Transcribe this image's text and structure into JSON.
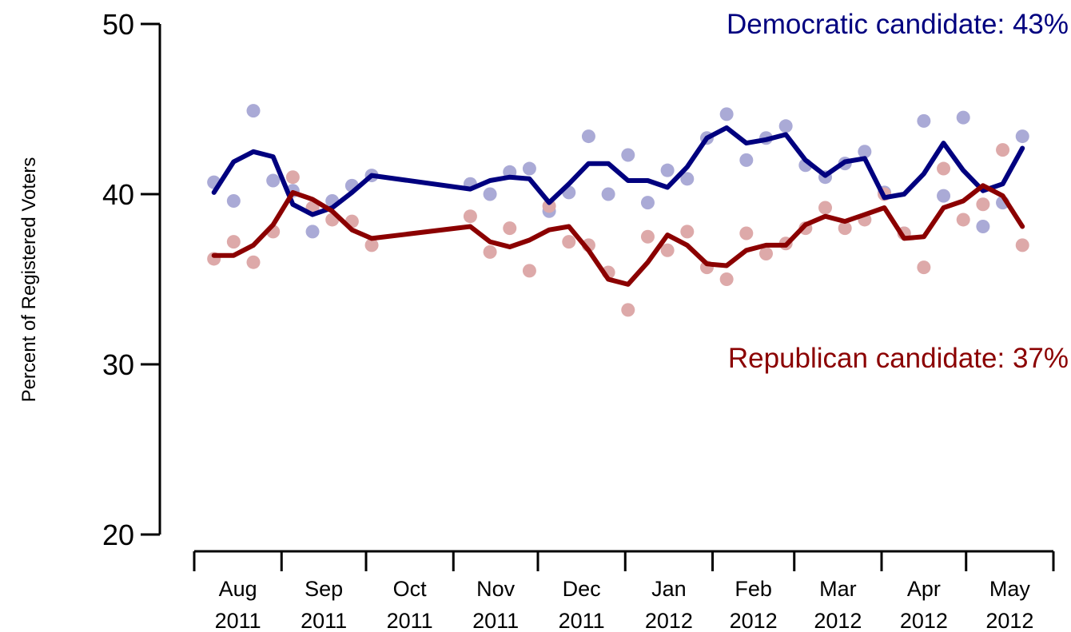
{
  "chart_data": {
    "type": "line",
    "title": "",
    "ylabel": "Percent of Registered Voters",
    "xlabel": "",
    "ylim": [
      20,
      50
    ],
    "yticks": [
      20,
      30,
      40,
      50
    ],
    "grid": false,
    "x_month_labels": [
      {
        "month": "Aug",
        "year": "2011"
      },
      {
        "month": "Sep",
        "year": "2011"
      },
      {
        "month": "Oct",
        "year": "2011"
      },
      {
        "month": "Nov",
        "year": "2011"
      },
      {
        "month": "Dec",
        "year": "2011"
      },
      {
        "month": "Jan",
        "year": "2012"
      },
      {
        "month": "Feb",
        "year": "2012"
      },
      {
        "month": "Mar",
        "year": "2012"
      },
      {
        "month": "Apr",
        "year": "2012"
      },
      {
        "month": "May",
        "year": "2012"
      }
    ],
    "x_dates": [
      "2011-08-08",
      "2011-08-15",
      "2011-08-22",
      "2011-08-29",
      "2011-09-05",
      "2011-09-12",
      "2011-09-19",
      "2011-09-26",
      "2011-10-03",
      "2011-10-10",
      "2011-10-17",
      "2011-11-07",
      "2011-11-14",
      "2011-11-21",
      "2011-11-28",
      "2011-12-05",
      "2011-12-12",
      "2011-12-19",
      "2011-12-26",
      "2012-01-02",
      "2012-01-09",
      "2012-01-16",
      "2012-01-23",
      "2012-01-30",
      "2012-02-06",
      "2012-02-13",
      "2012-02-20",
      "2012-02-27",
      "2012-03-05",
      "2012-03-12",
      "2012-03-19",
      "2012-03-26",
      "2012-04-02",
      "2012-04-09",
      "2012-04-16",
      "2012-04-23",
      "2012-04-30",
      "2012-05-07",
      "2012-05-14",
      "2012-05-21"
    ],
    "series": [
      {
        "name": "Democratic candidate",
        "label": "Democratic candidate: 43%",
        "color": "#00007f",
        "point_color": "#aaaad6",
        "points": [
          40.7,
          39.6,
          44.9,
          40.8,
          40.2,
          37.8,
          39.6,
          40.5,
          41.1,
          null,
          null,
          40.6,
          40.0,
          41.3,
          41.5,
          39.0,
          40.1,
          43.4,
          40.0,
          42.3,
          39.5,
          41.4,
          40.9,
          43.3,
          44.7,
          42.0,
          43.3,
          44.0,
          41.7,
          41.0,
          41.8,
          42.5,
          40.1,
          37.7,
          44.3,
          39.9,
          44.5,
          38.1,
          39.5,
          43.4
        ],
        "trend": [
          40.1,
          41.9,
          42.5,
          42.2,
          39.4,
          38.8,
          39.2,
          40.1,
          41.1,
          null,
          null,
          40.3,
          40.8,
          41.0,
          40.9,
          39.5,
          40.6,
          41.8,
          41.8,
          40.8,
          40.8,
          40.4,
          41.6,
          43.3,
          43.9,
          43.0,
          43.2,
          43.5,
          42.0,
          41.1,
          41.9,
          42.1,
          39.8,
          40.0,
          41.2,
          43.0,
          41.4,
          40.2,
          40.6,
          42.7
        ]
      },
      {
        "name": "Republican candidate",
        "label": "Republican candidate: 37%",
        "color": "#8b0000",
        "point_color": "#dda9a9",
        "points": [
          36.2,
          37.2,
          36.0,
          37.8,
          41.0,
          39.2,
          38.5,
          38.4,
          37.0,
          null,
          null,
          38.7,
          36.6,
          38.0,
          35.5,
          39.3,
          37.2,
          37.0,
          35.4,
          33.2,
          37.5,
          36.7,
          37.8,
          35.7,
          35.0,
          37.7,
          36.5,
          37.1,
          38.0,
          39.2,
          38.0,
          38.5,
          40.0,
          37.7,
          35.7,
          41.5,
          38.5,
          39.4,
          42.6,
          37.0
        ],
        "trend": [
          36.4,
          36.4,
          37.0,
          38.2,
          40.1,
          39.7,
          39.0,
          37.9,
          37.4,
          null,
          null,
          38.1,
          37.2,
          36.9,
          37.3,
          37.9,
          38.1,
          36.7,
          35.0,
          34.7,
          36.0,
          37.6,
          37.0,
          35.9,
          35.8,
          36.7,
          37.0,
          37.0,
          38.2,
          38.7,
          38.4,
          38.8,
          39.2,
          37.4,
          37.5,
          39.2,
          39.6,
          40.5,
          39.9,
          38.1
        ]
      }
    ]
  }
}
